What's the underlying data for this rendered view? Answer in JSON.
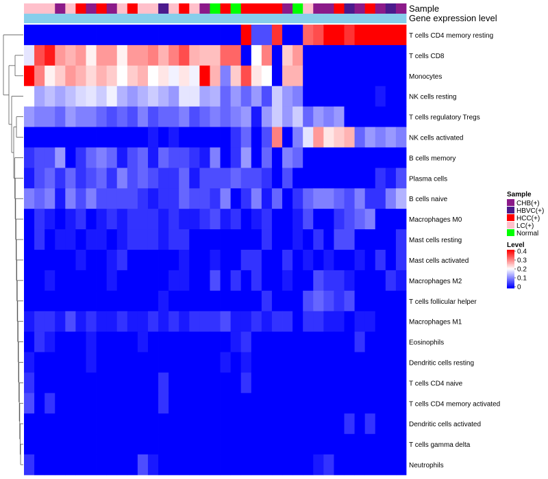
{
  "chart_data": {
    "type": "heatmap",
    "annotation_tracks": [
      {
        "name": "Sample",
        "values": [
          "LC(+)",
          "LC(+)",
          "LC(+)",
          "CHB(+)",
          "LC(+)",
          "HCC(+)",
          "CHB(+)",
          "HCC(+)",
          "CHB(+)",
          "LC(+)",
          "HCC(+)",
          "LC(+)",
          "LC(+)",
          "HBVC(+)",
          "LC(+)",
          "HCC(+)",
          "LC(+)",
          "CHB(+)",
          "Normal",
          "HCC(+)",
          "Normal",
          "HCC(+)",
          "HCC(+)",
          "HCC(+)",
          "HCC(+)",
          "CHB(+)",
          "Normal",
          "LC(+)",
          "CHB(+)",
          "CHB(+)",
          "HCC(+)",
          "HBVC(+)",
          "CHB(+)",
          "HCC(+)",
          "CHB(+)",
          "HBVC(+)",
          "CHB(+)"
        ]
      },
      {
        "name": "Gene expression level",
        "values": [
          "x",
          "x",
          "x",
          "x",
          "x",
          "x",
          "x",
          "x",
          "x",
          "x",
          "x",
          "x",
          "x",
          "x",
          "x",
          "x",
          "x",
          "x",
          "x",
          "x",
          "x",
          "x",
          "x",
          "x",
          "x",
          "x",
          "x",
          "x",
          "x",
          "x",
          "x",
          "x",
          "x",
          "x",
          "x",
          "x",
          "x"
        ]
      }
    ],
    "rows": [
      {
        "label": "T cells CD4 memory resting",
        "values": [
          0,
          0,
          0,
          0,
          0,
          0,
          0,
          0,
          0,
          0,
          0,
          0,
          0,
          0,
          0,
          0,
          0,
          0,
          0,
          0,
          0,
          0.4,
          0.06,
          0.06,
          0.36,
          0,
          0,
          0.32,
          0.34,
          0.4,
          0.4,
          0.36,
          0.4,
          0.4,
          0.4,
          0.4,
          0.4
        ]
      },
      {
        "label": "T cells CD8",
        "values": [
          0.18,
          0.34,
          0.38,
          0.28,
          0.26,
          0.28,
          0.21,
          0.28,
          0.28,
          0.21,
          0.28,
          0.28,
          0.3,
          0.26,
          0.3,
          0.34,
          0.26,
          0.25,
          0.25,
          0.32,
          0.32,
          0,
          0.2,
          0.3,
          0,
          0.24,
          0.28,
          0,
          0,
          0,
          0,
          0,
          0,
          0,
          0,
          0,
          0
        ]
      },
      {
        "label": "Monocytes",
        "values": [
          0.4,
          0.3,
          0.21,
          0.24,
          0.28,
          0.26,
          0.23,
          0.26,
          0.24,
          0.2,
          0.24,
          0.26,
          0.2,
          0.22,
          0.19,
          0.22,
          0.19,
          0.4,
          0.26,
          0.1,
          0.24,
          0.34,
          0.22,
          0.2,
          0,
          0.26,
          0.26,
          0,
          0,
          0,
          0,
          0,
          0,
          0,
          0,
          0,
          0
        ]
      },
      {
        "label": "NK cells resting",
        "values": [
          0.2,
          0.13,
          0.15,
          0.13,
          0.15,
          0.17,
          0.18,
          0.16,
          0.19,
          0.14,
          0.12,
          0.14,
          0.16,
          0.14,
          0.12,
          0.18,
          0.18,
          0.13,
          0.14,
          0.08,
          0.12,
          0.08,
          0.12,
          0.06,
          0.16,
          0.12,
          0.1,
          0,
          0,
          0,
          0,
          0,
          0,
          0,
          0.02,
          0,
          0
        ]
      },
      {
        "label": "T cells regulatory  Tregs",
        "values": [
          0.12,
          0.1,
          0.1,
          0.08,
          0.12,
          0.1,
          0.1,
          0.08,
          0.06,
          0.08,
          0.06,
          0.1,
          0.06,
          0.08,
          0.08,
          0.1,
          0.06,
          0.08,
          0.1,
          0.08,
          0.1,
          0.12,
          0.02,
          0.12,
          0.16,
          0.12,
          0.16,
          0.08,
          0.12,
          0.1,
          0.12,
          0,
          0,
          0,
          0,
          0,
          0
        ]
      },
      {
        "label": "NK cells activated",
        "values": [
          0,
          0,
          0,
          0,
          0,
          0,
          0,
          0,
          0,
          0,
          0,
          0,
          0.02,
          0,
          0.02,
          0,
          0,
          0,
          0,
          0,
          0.04,
          0.08,
          0,
          0.06,
          0.3,
          0,
          0.1,
          0.18,
          0.28,
          0.22,
          0.24,
          0.26,
          0.08,
          0.12,
          0.1,
          0.12,
          0.1
        ]
      },
      {
        "label": "B cells memory",
        "values": [
          0.04,
          0.06,
          0.06,
          0.12,
          0,
          0.04,
          0.08,
          0.1,
          0.08,
          0.02,
          0.06,
          0.08,
          0.02,
          0.08,
          0.06,
          0.06,
          0.04,
          0.02,
          0.1,
          0,
          0.04,
          0.12,
          0,
          0.08,
          0,
          0.1,
          0.08,
          0,
          0,
          0,
          0,
          0,
          0,
          0,
          0,
          0,
          0
        ]
      },
      {
        "label": "Plasma cells",
        "values": [
          0.02,
          0.06,
          0.08,
          0.04,
          0.08,
          0.04,
          0.06,
          0.08,
          0.04,
          0.1,
          0.06,
          0.08,
          0.06,
          0.04,
          0.04,
          0.08,
          0.02,
          0.06,
          0.06,
          0.06,
          0.08,
          0.06,
          0.06,
          0.04,
          0,
          0.06,
          0,
          0,
          0,
          0,
          0,
          0,
          0,
          0,
          0.04,
          0.02,
          0.06
        ]
      },
      {
        "label": "B cells naive",
        "values": [
          0.1,
          0.08,
          0.1,
          0.02,
          0.1,
          0.06,
          0.1,
          0.06,
          0.06,
          0.06,
          0.06,
          0.04,
          0.02,
          0.04,
          0.04,
          0.08,
          0.06,
          0.06,
          0.04,
          0.1,
          0,
          0.04,
          0.1,
          0.02,
          0.08,
          0,
          0.04,
          0.08,
          0.1,
          0.1,
          0.08,
          0.06,
          0.1,
          0.04,
          0.04,
          0.1,
          0.14
        ]
      },
      {
        "label": "Macrophages M0",
        "values": [
          0,
          0.04,
          0.02,
          0,
          0.02,
          0.04,
          0,
          0.02,
          0.04,
          0.02,
          0.04,
          0.04,
          0.04,
          0.02,
          0.04,
          0.02,
          0.02,
          0.04,
          0.06,
          0.02,
          0.04,
          0,
          0.02,
          0.04,
          0,
          0,
          0.02,
          0.06,
          0,
          0,
          0.04,
          0.06,
          0.08,
          0.1,
          0,
          0,
          0
        ]
      },
      {
        "label": "Mast cells resting",
        "values": [
          0,
          0.04,
          0,
          0.02,
          0.02,
          0,
          0.02,
          0.02,
          0,
          0.02,
          0.04,
          0.04,
          0.04,
          0.02,
          0.04,
          0.04,
          0,
          0,
          0,
          0,
          0,
          0,
          0,
          0.04,
          0,
          0,
          0.02,
          0,
          0.04,
          0,
          0.06,
          0.06,
          0,
          0,
          0,
          0,
          0.04
        ]
      },
      {
        "label": "Mast cells activated",
        "values": [
          0,
          0,
          0,
          0,
          0,
          0.02,
          0,
          0,
          0.02,
          0.04,
          0,
          0,
          0,
          0,
          0,
          0.02,
          0,
          0,
          0.02,
          0,
          0,
          0.04,
          0.04,
          0,
          0,
          0.04,
          0,
          0.02,
          0,
          0.02,
          0,
          0,
          0.02,
          0,
          0.04,
          0,
          0.04
        ]
      },
      {
        "label": "Macrophages M2",
        "values": [
          0,
          0,
          0.02,
          0,
          0,
          0,
          0,
          0,
          0.02,
          0,
          0,
          0,
          0,
          0,
          0.02,
          0.02,
          0,
          0,
          0.06,
          0,
          0.04,
          0,
          0.04,
          0,
          0,
          0.02,
          0,
          0,
          0.06,
          0.04,
          0.04,
          0.02,
          0,
          0,
          0,
          0.04,
          0.02
        ]
      },
      {
        "label": "T cells follicular helper",
        "values": [
          0,
          0,
          0,
          0,
          0,
          0,
          0,
          0,
          0,
          0,
          0,
          0,
          0,
          0.02,
          0,
          0,
          0,
          0,
          0,
          0,
          0,
          0,
          0,
          0.04,
          0,
          0,
          0,
          0.06,
          0.08,
          0.06,
          0.04,
          0.06,
          0,
          0,
          0,
          0,
          0
        ]
      },
      {
        "label": "Macrophages M1",
        "values": [
          0.02,
          0.04,
          0.04,
          0.02,
          0.06,
          0.02,
          0.04,
          0.02,
          0.02,
          0.04,
          0.02,
          0.02,
          0.04,
          0.02,
          0.04,
          0.02,
          0.04,
          0.04,
          0.04,
          0.06,
          0.02,
          0.02,
          0.04,
          0.02,
          0.04,
          0.04,
          0,
          0.04,
          0.04,
          0.02,
          0.02,
          0,
          0.02,
          0.02,
          0,
          0,
          0
        ]
      },
      {
        "label": "Eosinophils",
        "values": [
          0,
          0.04,
          0.02,
          0,
          0,
          0,
          0.02,
          0,
          0,
          0,
          0,
          0.02,
          0,
          0,
          0,
          0,
          0,
          0,
          0,
          0,
          0.02,
          0.04,
          0,
          0,
          0,
          0,
          0,
          0,
          0,
          0,
          0,
          0,
          0.04,
          0,
          0,
          0,
          0
        ]
      },
      {
        "label": "Dendritic cells resting",
        "values": [
          0.02,
          0,
          0,
          0,
          0,
          0,
          0.02,
          0,
          0,
          0,
          0,
          0,
          0,
          0,
          0,
          0,
          0,
          0,
          0,
          0.02,
          0,
          0.02,
          0,
          0,
          0,
          0,
          0,
          0,
          0,
          0,
          0,
          0,
          0,
          0,
          0,
          0,
          0
        ]
      },
      {
        "label": "T cells CD4 naive",
        "values": [
          0.04,
          0,
          0,
          0,
          0,
          0,
          0,
          0,
          0,
          0,
          0,
          0,
          0,
          0.04,
          0,
          0,
          0,
          0,
          0,
          0,
          0,
          0.04,
          0,
          0,
          0,
          0,
          0,
          0,
          0,
          0,
          0,
          0,
          0,
          0,
          0,
          0,
          0
        ]
      },
      {
        "label": "T cells CD4 memory activated",
        "values": [
          0.06,
          0,
          0.04,
          0,
          0,
          0,
          0,
          0,
          0,
          0,
          0,
          0,
          0,
          0.04,
          0,
          0,
          0,
          0,
          0,
          0,
          0,
          0,
          0,
          0,
          0,
          0,
          0,
          0,
          0,
          0,
          0,
          0,
          0,
          0,
          0,
          0,
          0
        ]
      },
      {
        "label": "Dendritic cells activated",
        "values": [
          0,
          0,
          0,
          0,
          0,
          0,
          0,
          0,
          0,
          0,
          0,
          0,
          0,
          0,
          0,
          0,
          0,
          0,
          0,
          0,
          0,
          0,
          0,
          0,
          0,
          0,
          0,
          0,
          0,
          0,
          0,
          0.04,
          0,
          0.04,
          0,
          0,
          0
        ]
      },
      {
        "label": "T cells gamma delta",
        "values": [
          0,
          0,
          0,
          0,
          0,
          0,
          0,
          0,
          0,
          0,
          0,
          0,
          0,
          0,
          0,
          0,
          0,
          0,
          0,
          0,
          0,
          0,
          0,
          0,
          0,
          0,
          0,
          0,
          0,
          0,
          0,
          0,
          0,
          0,
          0,
          0,
          0
        ]
      },
      {
        "label": "Neutrophils",
        "values": [
          0.04,
          0,
          0,
          0,
          0,
          0,
          0,
          0,
          0,
          0,
          0,
          0.06,
          0.02,
          0,
          0,
          0,
          0,
          0,
          0,
          0,
          0,
          0,
          0,
          0,
          0,
          0,
          0,
          0,
          0.02,
          0.04,
          0,
          0,
          0,
          0,
          0,
          0,
          0
        ]
      }
    ],
    "legend": {
      "sample_title": "Sample",
      "sample_entries": [
        {
          "label": "CHB(+)",
          "color": "#8B1A89"
        },
        {
          "label": "HBVC(+)",
          "color": "#4B1A8C"
        },
        {
          "label": "HCC(+)",
          "color": "#FF0000"
        },
        {
          "label": "LC(+)",
          "color": "#FFC0CB"
        },
        {
          "label": "Normal",
          "color": "#00FF00"
        }
      ],
      "level_title": "Level",
      "level_ticks": [
        "0.4",
        "0.3",
        "0.2",
        "0.1",
        "0"
      ],
      "level_range": [
        0,
        0.4
      ]
    },
    "colors": {
      "low": "#0000FF",
      "mid": "#FFFFFF",
      "high": "#FF0000",
      "gene_track": "#87CEEB",
      "dendrogram": "#555555"
    },
    "title": "",
    "xlabel": "",
    "ylabel": ""
  }
}
